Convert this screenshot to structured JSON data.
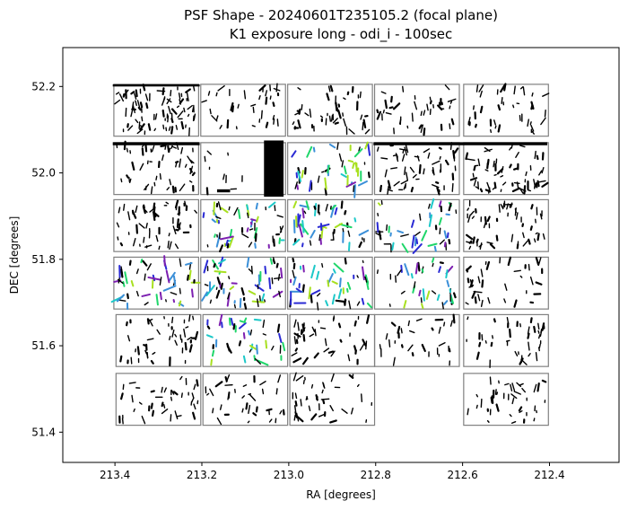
{
  "chart_data": {
    "type": "scatter",
    "title": "PSF Shape - 20240601T235105.2 (focal plane)",
    "subtitle": "K1 exposure long - odi_i - 100sec",
    "xlabel": "RA [degrees]",
    "ylabel": "DEC [degrees]",
    "xlim": [
      213.52,
      212.24
    ],
    "ylim": [
      51.33,
      52.29
    ],
    "x_reversed": true,
    "grid": false,
    "x_ticks": [
      213.4,
      213.2,
      213.0,
      212.8,
      212.6,
      212.4
    ],
    "x_tick_labels": [
      "213.4",
      "213.2",
      "213.0",
      "212.8",
      "212.6",
      "212.4"
    ],
    "y_ticks": [
      51.4,
      51.6,
      51.8,
      52.0,
      52.2
    ],
    "y_tick_labels": [
      "51.4",
      "51.6",
      "51.8",
      "52.0",
      "52.2"
    ],
    "ota_cell_size_deg": [
      0.195,
      0.12
    ],
    "ota_cells": [
      {
        "ra": 213.305,
        "dec": 52.145,
        "density": 80
      },
      {
        "ra": 213.105,
        "dec": 52.145,
        "density": 35
      },
      {
        "ra": 212.905,
        "dec": 52.145,
        "density": 45
      },
      {
        "ra": 212.705,
        "dec": 52.145,
        "density": 40
      },
      {
        "ra": 212.5,
        "dec": 52.145,
        "density": 40
      },
      {
        "ra": 213.305,
        "dec": 52.01,
        "density": 50
      },
      {
        "ra": 213.105,
        "dec": 52.01,
        "density": 10
      },
      {
        "ra": 212.905,
        "dec": 52.01,
        "density": 45
      },
      {
        "ra": 212.705,
        "dec": 52.01,
        "density": 55
      },
      {
        "ra": 212.5,
        "dec": 52.01,
        "density": 60
      },
      {
        "ra": 213.305,
        "dec": 51.878,
        "density": 55
      },
      {
        "ra": 213.105,
        "dec": 51.878,
        "density": 55
      },
      {
        "ra": 212.905,
        "dec": 51.878,
        "density": 50
      },
      {
        "ra": 212.705,
        "dec": 51.878,
        "density": 45
      },
      {
        "ra": 212.5,
        "dec": 51.878,
        "density": 55
      },
      {
        "ra": 213.305,
        "dec": 51.745,
        "density": 50
      },
      {
        "ra": 213.105,
        "dec": 51.745,
        "density": 55
      },
      {
        "ra": 212.905,
        "dec": 51.745,
        "density": 50
      },
      {
        "ra": 212.705,
        "dec": 51.745,
        "density": 40
      },
      {
        "ra": 212.5,
        "dec": 51.745,
        "density": 35
      },
      {
        "ra": 213.3,
        "dec": 51.612,
        "density": 45
      },
      {
        "ra": 213.1,
        "dec": 51.612,
        "density": 40
      },
      {
        "ra": 212.9,
        "dec": 51.612,
        "density": 40
      },
      {
        "ra": 212.705,
        "dec": 51.612,
        "density": 30
      },
      {
        "ra": 212.5,
        "dec": 51.612,
        "density": 40
      },
      {
        "ra": 213.3,
        "dec": 51.476,
        "density": 40
      },
      {
        "ra": 213.1,
        "dec": 51.476,
        "density": 35
      },
      {
        "ra": 212.9,
        "dec": 51.476,
        "density": 40
      },
      {
        "ra": 212.5,
        "dec": 51.476,
        "density": 40
      }
    ],
    "colors": {
      "frame": "#000000",
      "ota_border": "#808080",
      "psf_default": "#000000",
      "psf_palette": [
        "#2a2ad4",
        "#3a8fd8",
        "#1cc8c8",
        "#7c1fb0",
        "#1fd66a",
        "#a8e020"
      ]
    }
  }
}
